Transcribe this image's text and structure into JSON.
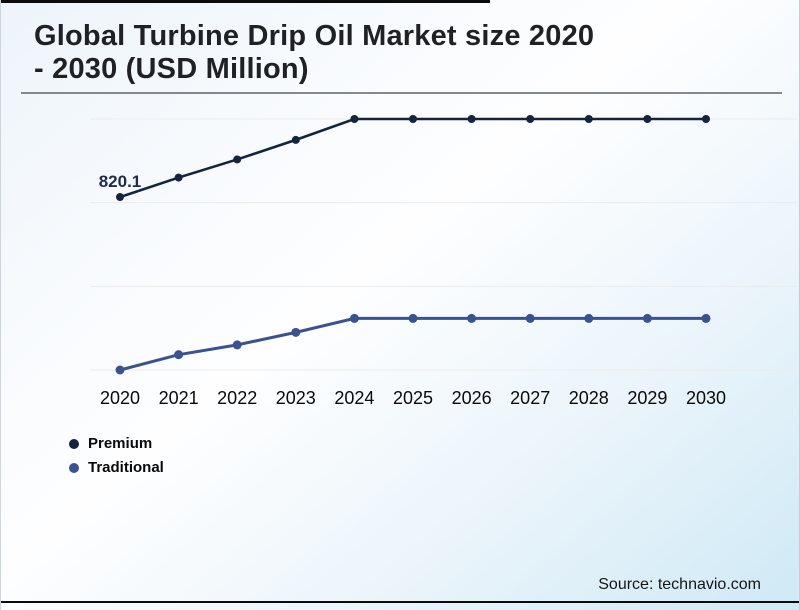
{
  "header": {
    "title_line1": "Global Turbine Drip Oil Market size 2020",
    "title_line2": "- 2030 (USD Million)"
  },
  "footer": {
    "source": "Source: technavio.com"
  },
  "legend": [
    {
      "label": "Premium",
      "color": "#15233f"
    },
    {
      "label": "Traditional",
      "color": "#3a5390"
    }
  ],
  "chart_data": {
    "type": "line",
    "title": "Global Turbine Drip Oil Market size 2020 - 2030 (USD Million)",
    "x": [
      2020,
      2021,
      2022,
      2023,
      2024,
      2025,
      2026,
      2027,
      2028,
      2029,
      2030
    ],
    "series": [
      {
        "name": "Premium",
        "color": "#15233f",
        "values": [
          820.1,
          890,
          955,
          1025,
          1100,
          1100,
          1100,
          1100,
          1100,
          1100,
          1100
        ]
      },
      {
        "name": "Traditional",
        "color": "#3a5390",
        "values": [
          200,
          255,
          290,
          335,
          385,
          385,
          385,
          385,
          385,
          385,
          385
        ]
      }
    ],
    "annotations": [
      {
        "text": "820.1",
        "series": "Premium",
        "x": 2020
      }
    ],
    "ylim": [
      200,
      1100
    ],
    "gridline_values": [
      200,
      500,
      800,
      1100
    ],
    "grid": true,
    "gridline_color": "#ebebeb",
    "xlabel": "",
    "ylabel": "",
    "legend_position": "bottom-left",
    "x_tick_color": "#0a0a0a",
    "annotation_color": "#1b2c4e"
  }
}
